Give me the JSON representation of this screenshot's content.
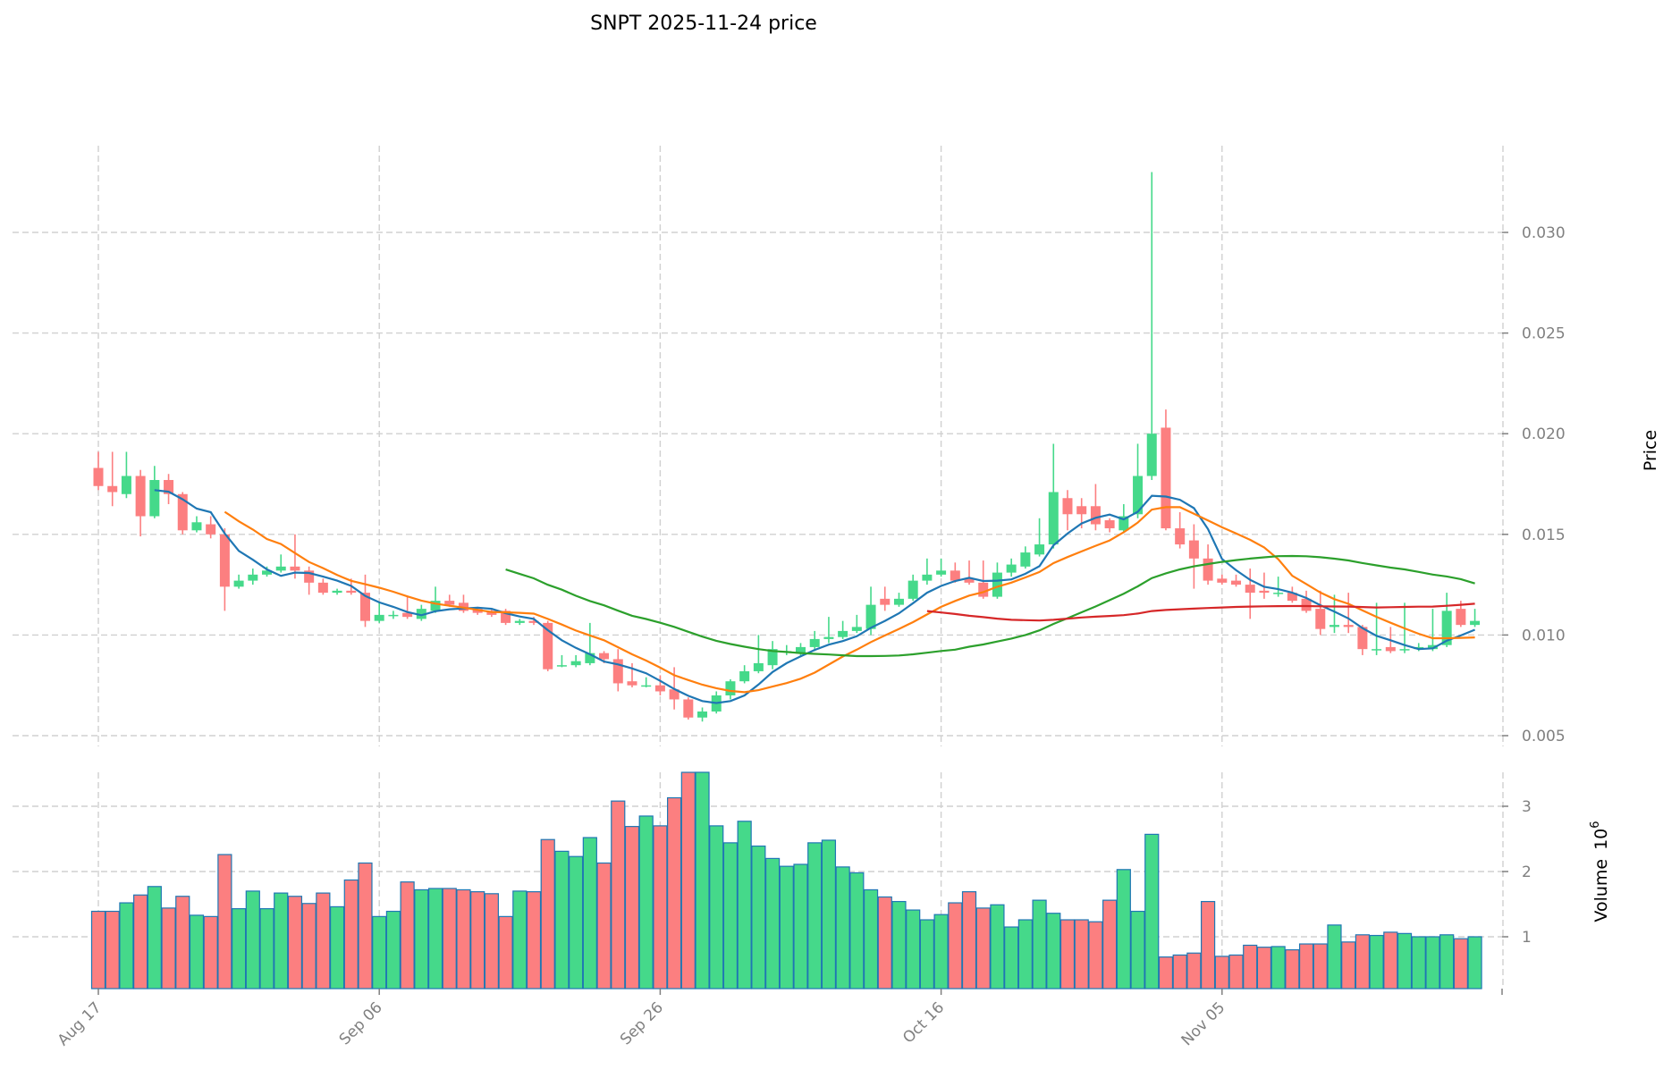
{
  "chart_data": {
    "type": "candlestick",
    "title": "SNPT  2025-11-24  price",
    "ylabel": "Price",
    "volume_label": "Volume",
    "volume_exp": "10",
    "volume_exp_power": "6",
    "ylim": [
      0.0,
      0.0345
    ],
    "volume_ylim": [
      0.2,
      3.6
    ],
    "yticks": [
      "0.005",
      "0.010",
      "0.015",
      "0.020",
      "0.025",
      "0.030"
    ],
    "volume_yticks": [
      "1",
      "2",
      "3"
    ],
    "xticks": [
      {
        "index": 0,
        "label": "Aug 17"
      },
      {
        "index": 20,
        "label": "Sep 06"
      },
      {
        "index": 40,
        "label": "Sep 26"
      },
      {
        "index": 60,
        "label": "Oct 16"
      },
      {
        "index": 80,
        "label": "Nov 05"
      }
    ],
    "grid": true,
    "colors": {
      "up": "#45d98a",
      "down": "#fc7f80",
      "volume_edge": "#1f77b4",
      "ma5": "#1f77b4",
      "ma10": "#ff7f0e",
      "ma30": "#2ca02c",
      "ma60": "#d62728"
    },
    "moving_averages": [
      5,
      10,
      30,
      60
    ],
    "ohlc": [
      [
        0.0183,
        0.0191,
        0.0172,
        0.0174
      ],
      [
        0.0174,
        0.0191,
        0.0164,
        0.0171
      ],
      [
        0.017,
        0.0191,
        0.0168,
        0.0179
      ],
      [
        0.0179,
        0.0182,
        0.0149,
        0.0159
      ],
      [
        0.0159,
        0.0184,
        0.0158,
        0.0177
      ],
      [
        0.0177,
        0.018,
        0.0165,
        0.017
      ],
      [
        0.017,
        0.0171,
        0.015,
        0.0152
      ],
      [
        0.0152,
        0.0159,
        0.0151,
        0.0156
      ],
      [
        0.0155,
        0.0159,
        0.0148,
        0.015
      ],
      [
        0.015,
        0.0153,
        0.0112,
        0.0124
      ],
      [
        0.0124,
        0.013,
        0.0123,
        0.0127
      ],
      [
        0.0127,
        0.0133,
        0.0125,
        0.013
      ],
      [
        0.013,
        0.0134,
        0.0129,
        0.0132
      ],
      [
        0.0132,
        0.014,
        0.0131,
        0.0134
      ],
      [
        0.0134,
        0.015,
        0.0128,
        0.0132
      ],
      [
        0.0132,
        0.0134,
        0.012,
        0.0126
      ],
      [
        0.0126,
        0.0128,
        0.012,
        0.0121
      ],
      [
        0.0121,
        0.0123,
        0.012,
        0.0122
      ],
      [
        0.0122,
        0.0128,
        0.012,
        0.0121
      ],
      [
        0.0121,
        0.013,
        0.0104,
        0.0107
      ],
      [
        0.0107,
        0.0116,
        0.0106,
        0.011
      ],
      [
        0.011,
        0.0112,
        0.0108,
        0.011
      ],
      [
        0.0111,
        0.0119,
        0.0108,
        0.0109
      ],
      [
        0.0108,
        0.0115,
        0.0107,
        0.0113
      ],
      [
        0.0112,
        0.0124,
        0.0111,
        0.0117
      ],
      [
        0.0117,
        0.012,
        0.0114,
        0.0115
      ],
      [
        0.0116,
        0.012,
        0.0111,
        0.0112
      ],
      [
        0.0113,
        0.0114,
        0.011,
        0.0111
      ],
      [
        0.0112,
        0.0113,
        0.0109,
        0.011
      ],
      [
        0.0112,
        0.0113,
        0.0105,
        0.0106
      ],
      [
        0.0106,
        0.0108,
        0.0105,
        0.0107
      ],
      [
        0.0107,
        0.0109,
        0.0105,
        0.0106
      ],
      [
        0.0106,
        0.0107,
        0.0082,
        0.0083
      ],
      [
        0.0085,
        0.009,
        0.0084,
        0.0085
      ],
      [
        0.0085,
        0.009,
        0.0084,
        0.0087
      ],
      [
        0.0086,
        0.0106,
        0.0085,
        0.0091
      ],
      [
        0.0091,
        0.0092,
        0.0086,
        0.0088
      ],
      [
        0.0088,
        0.0093,
        0.0072,
        0.0076
      ],
      [
        0.0077,
        0.0086,
        0.0074,
        0.0075
      ],
      [
        0.0075,
        0.0079,
        0.0074,
        0.0075
      ],
      [
        0.0075,
        0.008,
        0.007,
        0.0072
      ],
      [
        0.0073,
        0.0084,
        0.0063,
        0.0068
      ],
      [
        0.0068,
        0.0069,
        0.0058,
        0.0059
      ],
      [
        0.0059,
        0.0064,
        0.0057,
        0.0062
      ],
      [
        0.0062,
        0.0072,
        0.0061,
        0.007
      ],
      [
        0.007,
        0.0078,
        0.0068,
        0.0077
      ],
      [
        0.0077,
        0.0085,
        0.0076,
        0.0082
      ],
      [
        0.0082,
        0.01,
        0.0081,
        0.0086
      ],
      [
        0.0085,
        0.0097,
        0.0083,
        0.0093
      ],
      [
        0.0092,
        0.0095,
        0.009,
        0.0092
      ],
      [
        0.0091,
        0.0096,
        0.0089,
        0.0094
      ],
      [
        0.0094,
        0.0102,
        0.0092,
        0.0098
      ],
      [
        0.0098,
        0.0109,
        0.0096,
        0.0099
      ],
      [
        0.0099,
        0.0107,
        0.0098,
        0.0102
      ],
      [
        0.0102,
        0.011,
        0.0101,
        0.0104
      ],
      [
        0.0103,
        0.0124,
        0.01,
        0.0115
      ],
      [
        0.0118,
        0.0124,
        0.0112,
        0.0115
      ],
      [
        0.0115,
        0.0121,
        0.0114,
        0.0118
      ],
      [
        0.0118,
        0.013,
        0.0117,
        0.0127
      ],
      [
        0.0127,
        0.0138,
        0.0125,
        0.013
      ],
      [
        0.013,
        0.0138,
        0.0129,
        0.0132
      ],
      [
        0.0132,
        0.0136,
        0.0126,
        0.0127
      ],
      [
        0.0128,
        0.0137,
        0.0125,
        0.0126
      ],
      [
        0.0126,
        0.0137,
        0.0118,
        0.0119
      ],
      [
        0.0119,
        0.0136,
        0.0118,
        0.0131
      ],
      [
        0.0131,
        0.0138,
        0.0129,
        0.0135
      ],
      [
        0.0134,
        0.0144,
        0.0133,
        0.0141
      ],
      [
        0.014,
        0.0158,
        0.0139,
        0.0145
      ],
      [
        0.0145,
        0.0195,
        0.0143,
        0.0171
      ],
      [
        0.0168,
        0.0172,
        0.0152,
        0.016
      ],
      [
        0.0164,
        0.0168,
        0.0153,
        0.016
      ],
      [
        0.0164,
        0.0175,
        0.0152,
        0.0155
      ],
      [
        0.0157,
        0.0158,
        0.0151,
        0.0153
      ],
      [
        0.0152,
        0.0165,
        0.0151,
        0.0159
      ],
      [
        0.016,
        0.0195,
        0.0158,
        0.0179
      ],
      [
        0.0179,
        0.033,
        0.0177,
        0.02
      ],
      [
        0.0203,
        0.0212,
        0.0152,
        0.0153
      ],
      [
        0.0153,
        0.0161,
        0.0143,
        0.0145
      ],
      [
        0.0147,
        0.0155,
        0.0123,
        0.0138
      ],
      [
        0.0138,
        0.0145,
        0.0125,
        0.0127
      ],
      [
        0.0128,
        0.013,
        0.0125,
        0.0126
      ],
      [
        0.0127,
        0.013,
        0.0124,
        0.0125
      ],
      [
        0.0125,
        0.0133,
        0.0108,
        0.0121
      ],
      [
        0.0122,
        0.0131,
        0.0118,
        0.0121
      ],
      [
        0.0121,
        0.0129,
        0.0119,
        0.0121
      ],
      [
        0.0121,
        0.0124,
        0.0116,
        0.0117
      ],
      [
        0.0118,
        0.0122,
        0.0111,
        0.0112
      ],
      [
        0.0113,
        0.0122,
        0.01,
        0.0103
      ],
      [
        0.0104,
        0.012,
        0.0101,
        0.0105
      ],
      [
        0.0105,
        0.0121,
        0.0101,
        0.0104
      ],
      [
        0.0104,
        0.0105,
        0.009,
        0.0093
      ],
      [
        0.0093,
        0.0116,
        0.009,
        0.0093
      ],
      [
        0.0094,
        0.0104,
        0.0091,
        0.0092
      ],
      [
        0.0093,
        0.0116,
        0.0091,
        0.0093
      ],
      [
        0.0093,
        0.0096,
        0.0092,
        0.0094
      ],
      [
        0.0093,
        0.0113,
        0.0092,
        0.0095
      ],
      [
        0.0095,
        0.0121,
        0.0094,
        0.0112
      ],
      [
        0.0113,
        0.0117,
        0.0104,
        0.0105
      ],
      [
        0.0105,
        0.0113,
        0.0104,
        0.0107
      ]
    ],
    "volume": [
      1.39,
      1.39,
      1.52,
      1.64,
      1.77,
      1.44,
      1.62,
      1.33,
      1.31,
      2.26,
      1.43,
      1.7,
      1.43,
      1.67,
      1.62,
      1.51,
      1.67,
      1.46,
      1.87,
      2.13,
      1.31,
      1.39,
      1.84,
      1.72,
      1.74,
      1.74,
      1.72,
      1.69,
      1.66,
      1.31,
      1.7,
      1.69,
      2.49,
      2.31,
      2.23,
      2.52,
      2.13,
      3.08,
      2.69,
      2.85,
      2.7,
      3.13,
      3.52,
      3.56,
      2.7,
      2.44,
      2.77,
      2.39,
      2.2,
      2.08,
      2.11,
      2.44,
      2.48,
      2.07,
      1.98,
      1.72,
      1.61,
      1.54,
      1.41,
      1.26,
      1.34,
      1.52,
      1.69,
      1.44,
      1.49,
      1.15,
      1.26,
      1.56,
      1.36,
      1.26,
      1.26,
      1.23,
      1.56,
      2.03,
      1.39,
      2.57,
      0.69,
      0.72,
      0.75,
      1.54,
      0.7,
      0.72,
      0.87,
      0.84,
      0.85,
      0.8,
      0.89,
      0.89,
      1.18,
      0.92,
      1.03,
      1.02,
      1.07,
      1.05,
      1.0,
      1.0,
      1.03,
      0.97,
      1.0
    ]
  }
}
